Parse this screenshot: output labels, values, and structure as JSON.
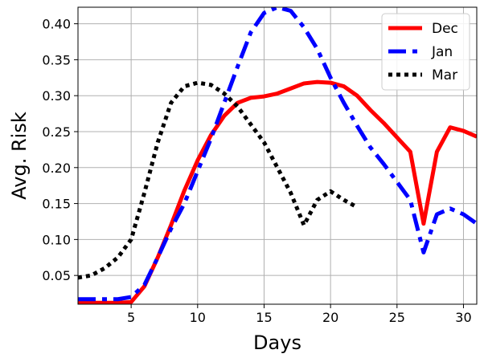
{
  "chart_data": {
    "type": "line",
    "xlabel": "Days",
    "ylabel": "Avg. Risk",
    "xlim": [
      1,
      31
    ],
    "ylim": [
      0.01,
      0.423
    ],
    "xticks": [
      5,
      10,
      15,
      20,
      25,
      30
    ],
    "yticks": [
      0.05,
      0.1,
      0.15,
      0.2,
      0.25,
      0.3,
      0.35,
      0.4
    ],
    "xtick_labels": [
      "5",
      "10",
      "15",
      "20",
      "25",
      "30"
    ],
    "ytick_labels": [
      "0.05",
      "0.10",
      "0.15",
      "0.20",
      "0.25",
      "0.30",
      "0.35",
      "0.40"
    ],
    "grid": true,
    "legend_position": "top-right",
    "series": [
      {
        "name": "Dec",
        "color": "#ff0000",
        "dash": "solid",
        "x": [
          1,
          2,
          3,
          4,
          5,
          6,
          7,
          8,
          9,
          10,
          11,
          12,
          13,
          14,
          15,
          16,
          17,
          18,
          19,
          20,
          21,
          22,
          23,
          24,
          25,
          26,
          27,
          28,
          29,
          30,
          31
        ],
        "y": [
          0.012,
          0.012,
          0.012,
          0.012,
          0.013,
          0.035,
          0.075,
          0.12,
          0.168,
          0.21,
          0.245,
          0.272,
          0.29,
          0.297,
          0.299,
          0.303,
          0.31,
          0.317,
          0.319,
          0.318,
          0.313,
          0.3,
          0.28,
          0.262,
          0.242,
          0.222,
          0.122,
          0.222,
          0.256,
          0.251,
          0.243
        ]
      },
      {
        "name": "Jan",
        "color": "#0000ff",
        "dash": "dashdot",
        "x": [
          1,
          2,
          3,
          4,
          5,
          6,
          7,
          8,
          9,
          10,
          11,
          12,
          13,
          14,
          15,
          16,
          17,
          18,
          19,
          20,
          21,
          22,
          23,
          24,
          25,
          26,
          27,
          28,
          29,
          30,
          31
        ],
        "y": [
          0.017,
          0.017,
          0.017,
          0.017,
          0.02,
          0.037,
          0.075,
          0.115,
          0.15,
          0.195,
          0.24,
          0.29,
          0.34,
          0.388,
          0.415,
          0.423,
          0.418,
          0.395,
          0.365,
          0.325,
          0.29,
          0.258,
          0.228,
          0.205,
          0.18,
          0.155,
          0.082,
          0.135,
          0.143,
          0.135,
          0.122
        ]
      },
      {
        "name": "Mar",
        "color": "#000000",
        "dash": "dotted",
        "x": [
          1,
          2,
          3,
          4,
          5,
          6,
          7,
          8,
          9,
          10,
          11,
          12,
          13,
          14,
          15,
          16,
          17,
          18,
          19,
          20,
          21,
          22
        ],
        "y": [
          0.047,
          0.05,
          0.06,
          0.075,
          0.1,
          0.165,
          0.235,
          0.29,
          0.313,
          0.318,
          0.315,
          0.303,
          0.285,
          0.26,
          0.235,
          0.2,
          0.165,
          0.12,
          0.155,
          0.167,
          0.155,
          0.145
        ]
      }
    ]
  }
}
